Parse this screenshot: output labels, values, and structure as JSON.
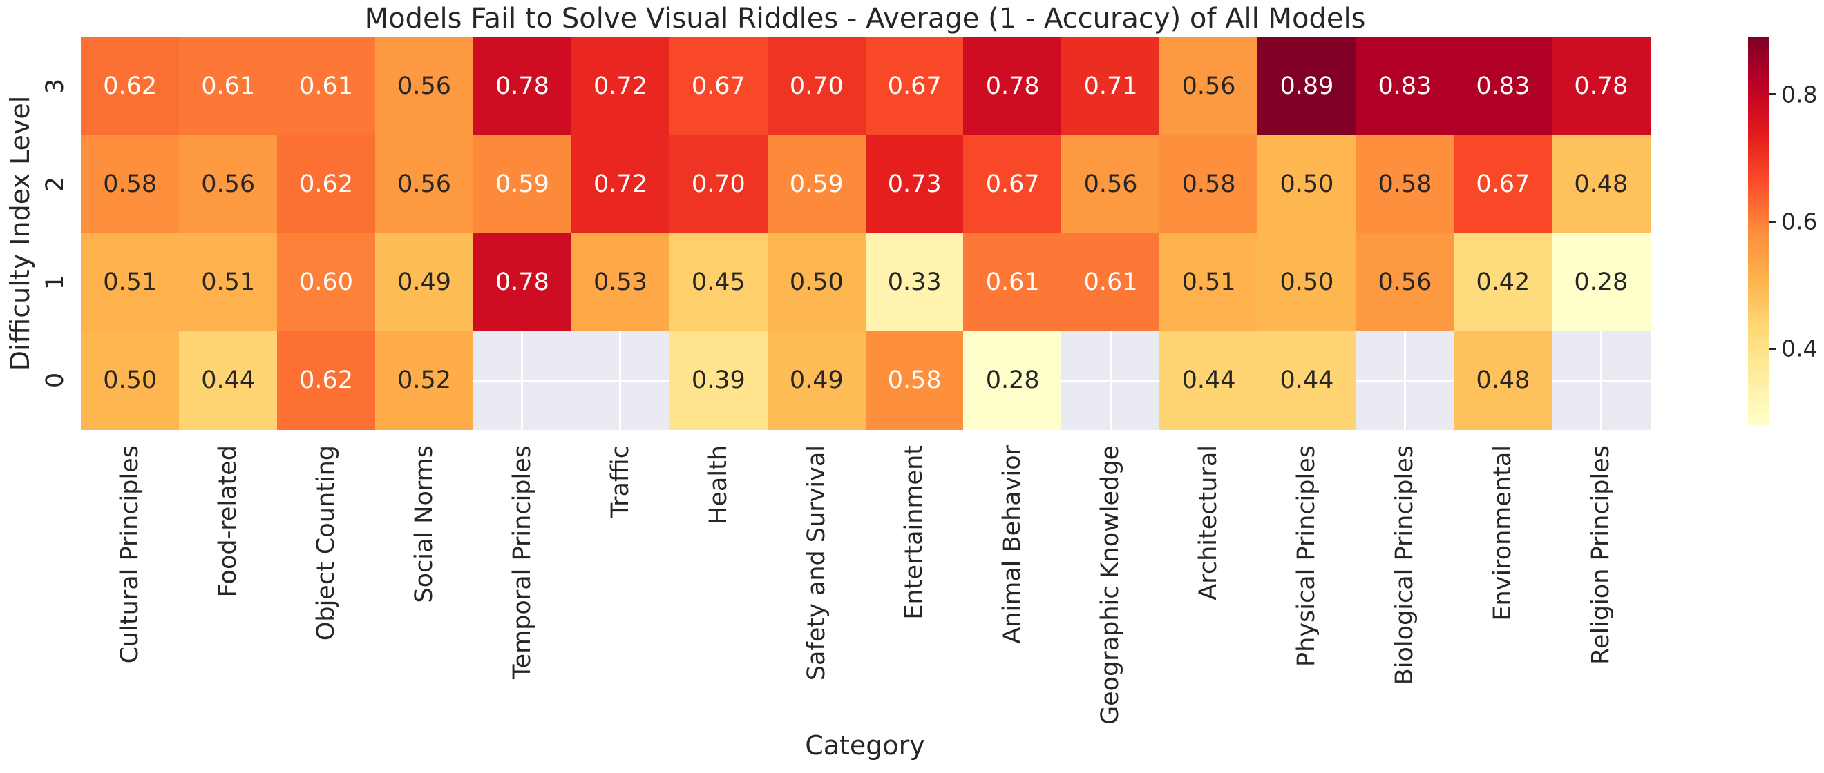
{
  "chart_data": {
    "type": "heatmap",
    "title": "Models Fail to Solve Visual Riddles - Average (1 - Accuracy) of All Models",
    "xlabel": "Category",
    "ylabel": "Difficulty Index Level",
    "categories": [
      "Cultural Principles",
      "Food-related",
      "Object Counting",
      "Social Norms",
      "Temporal Principles",
      "Traffic",
      "Health",
      "Safety and Survival",
      "Entertainment",
      "Animal Behavior",
      "Geographic Knowledge",
      "Architectural",
      "Physical Principles",
      "Biological Principles",
      "Environmental",
      "Religion Principles"
    ],
    "row_labels": [
      "3",
      "2",
      "1",
      "0"
    ],
    "values": [
      [
        0.62,
        0.61,
        0.61,
        0.56,
        0.78,
        0.72,
        0.67,
        0.7,
        0.67,
        0.78,
        0.71,
        0.56,
        0.89,
        0.83,
        0.83,
        0.78
      ],
      [
        0.58,
        0.56,
        0.62,
        0.56,
        0.59,
        0.72,
        0.7,
        0.59,
        0.73,
        0.67,
        0.56,
        0.58,
        0.5,
        0.58,
        0.67,
        0.48
      ],
      [
        0.51,
        0.51,
        0.6,
        0.49,
        0.78,
        0.53,
        0.45,
        0.5,
        0.33,
        0.61,
        0.61,
        0.51,
        0.5,
        0.56,
        0.42,
        0.28
      ],
      [
        0.5,
        0.44,
        0.62,
        0.52,
        null,
        null,
        0.39,
        0.49,
        0.58,
        0.28,
        null,
        0.44,
        0.44,
        null,
        0.48,
        null
      ]
    ],
    "annot_text_colors": [
      [
        "w",
        "w",
        "w",
        "d",
        "w",
        "w",
        "w",
        "w",
        "w",
        "w",
        "w",
        "d",
        "w",
        "w",
        "w",
        "w"
      ],
      [
        "d",
        "d",
        "w",
        "d",
        "w",
        "w",
        "w",
        "w",
        "w",
        "w",
        "d",
        "d",
        "d",
        "d",
        "w",
        "d"
      ],
      [
        "d",
        "d",
        "w",
        "d",
        "w",
        "d",
        "d",
        "d",
        "d",
        "w",
        "w",
        "d",
        "d",
        "d",
        "d",
        "d"
      ],
      [
        "d",
        "d",
        "w",
        "d",
        null,
        null,
        "d",
        "d",
        "w",
        "d",
        null,
        "d",
        "d",
        null,
        "d",
        null
      ]
    ],
    "vmin": 0.28,
    "vmax": 0.89,
    "colormap": {
      "name": "YlOrRd",
      "anchors": [
        "#ffffcc",
        "#ffeda0",
        "#fed976",
        "#feb24c",
        "#fd8d3c",
        "#fc4e2a",
        "#e31a1c",
        "#bd0026",
        "#800026"
      ]
    },
    "colorbar": {
      "ticks": [
        {
          "value": 0.8,
          "label": "0.8"
        },
        {
          "value": 0.6,
          "label": "0.6"
        },
        {
          "value": 0.4,
          "label": "0.4"
        }
      ]
    },
    "legend_position": "right",
    "grid": false,
    "colors": {
      "dark_text": "#262626",
      "white_text": "#ffffff",
      "nan_cell_bg": "#eaeaf2",
      "nan_grid_line": "#ffffff",
      "background": "#ffffff"
    }
  }
}
